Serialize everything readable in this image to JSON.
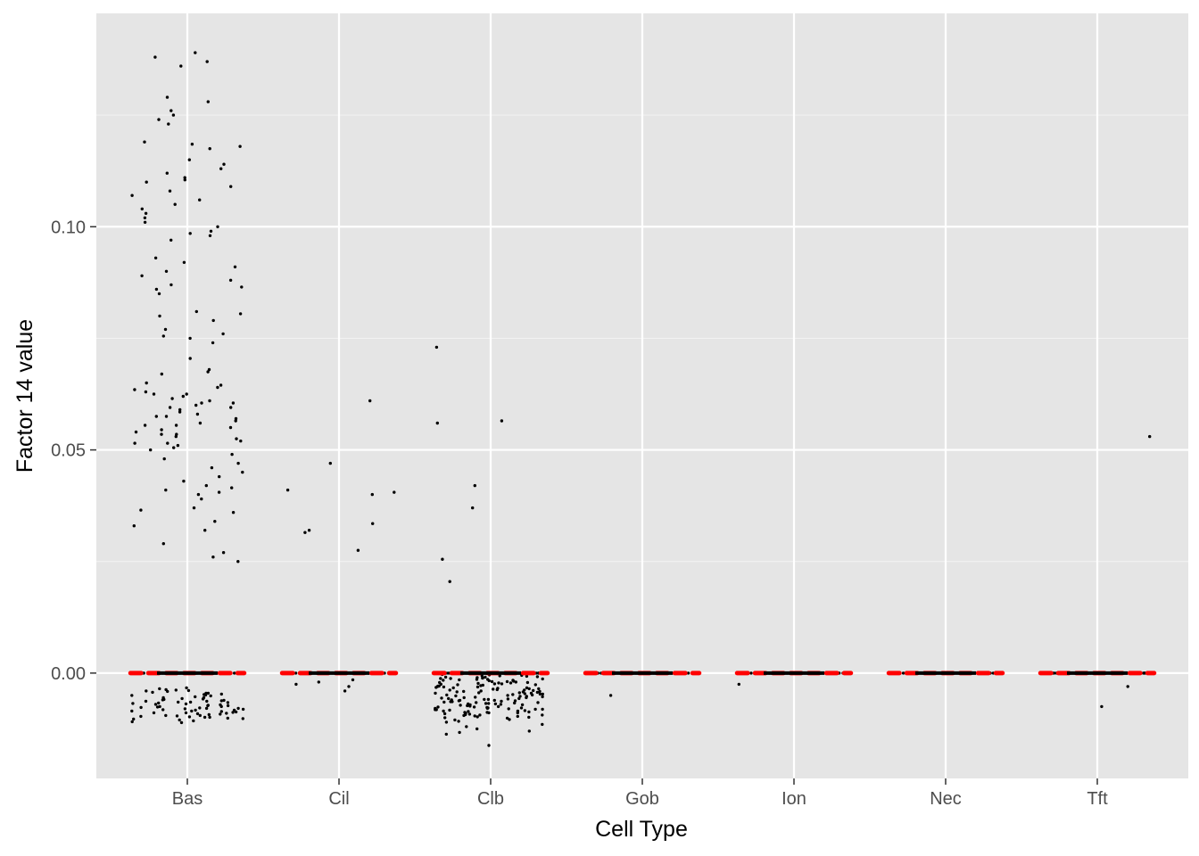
{
  "chart_data": {
    "type": "scatter",
    "title": "",
    "xlabel": "Cell Type",
    "ylabel": "Factor 14 value",
    "categories": [
      "Bas",
      "Cil",
      "Clb",
      "Gob",
      "Ion",
      "Nec",
      "Tft"
    ],
    "ylim": [
      -0.0236,
      0.1478
    ],
    "y_ticks": [
      0.0,
      0.05,
      0.1
    ],
    "y_tick_labels": [
      "0.00",
      "0.05",
      "0.10"
    ],
    "grid": true,
    "jitter_width": 0.37,
    "reference_segments": [
      {
        "category": "Bas",
        "y": 0.0
      },
      {
        "category": "Cil",
        "y": 0.0
      },
      {
        "category": "Clb",
        "y": 0.0
      },
      {
        "category": "Gob",
        "y": 0.0
      },
      {
        "category": "Ion",
        "y": 0.0
      },
      {
        "category": "Nec",
        "y": 0.0
      },
      {
        "category": "Tft",
        "y": 0.0
      }
    ],
    "groups": [
      {
        "category": "Bas",
        "zero_points": 60,
        "negative_values": [
          -0.0035,
          -0.004,
          -0.0045,
          -0.005,
          -0.0055,
          -0.006,
          -0.0065,
          -0.007,
          -0.0075,
          -0.008,
          -0.0085,
          -0.009,
          -0.0095,
          -0.0099,
          -0.0103,
          -0.0107,
          -0.0111,
          -0.0039,
          -0.0049,
          -0.0059,
          -0.0069,
          -0.0079,
          -0.0089,
          -0.0098,
          -0.0088,
          -0.0078,
          -0.0068,
          -0.0058,
          -0.0048,
          -0.0038,
          -0.0062,
          -0.0072,
          -0.0082,
          -0.0092,
          -0.0102,
          -0.0033,
          -0.0043,
          -0.0053,
          -0.0063,
          -0.0073,
          -0.0083,
          -0.0093,
          -0.0097,
          -0.0087,
          -0.0077,
          -0.0067,
          -0.0057,
          -0.0047,
          -0.0037,
          -0.0066,
          -0.0076,
          -0.0086,
          -0.0096,
          -0.0105,
          -0.0109,
          -0.0041,
          -0.0051,
          -0.0061,
          -0.0071,
          -0.0081,
          -0.0091,
          -0.0101,
          -0.0095,
          -0.0085,
          -0.0075,
          -0.0065,
          -0.0055,
          -0.0045,
          -0.0079,
          -0.0089,
          -0.0099,
          -0.0083,
          -0.0073,
          -0.0063
        ],
        "positive_values": [
          0.139,
          0.138,
          0.137,
          0.136,
          0.129,
          0.128,
          0.126,
          0.125,
          0.124,
          0.123,
          0.119,
          0.1185,
          0.118,
          0.1175,
          0.115,
          0.114,
          0.113,
          0.112,
          0.111,
          0.1105,
          0.11,
          0.109,
          0.108,
          0.107,
          0.106,
          0.105,
          0.104,
          0.103,
          0.102,
          0.101,
          0.1,
          0.099,
          0.098,
          0.097,
          0.093,
          0.092,
          0.091,
          0.09,
          0.089,
          0.088,
          0.087,
          0.0865,
          0.086,
          0.085,
          0.081,
          0.0805,
          0.08,
          0.079,
          0.077,
          0.076,
          0.0755,
          0.075,
          0.074,
          0.0705,
          0.068,
          0.0675,
          0.067,
          0.065,
          0.064,
          0.0635,
          0.063,
          0.0625,
          0.062,
          0.0615,
          0.061,
          0.0605,
          0.06,
          0.0595,
          0.059,
          0.0585,
          0.058,
          0.0575,
          0.057,
          0.0565,
          0.056,
          0.0555,
          0.055,
          0.0545,
          0.054,
          0.0535,
          0.053,
          0.0525,
          0.052,
          0.0515,
          0.051,
          0.0505,
          0.05,
          0.049,
          0.048,
          0.047,
          0.046,
          0.045,
          0.044,
          0.043,
          0.042,
          0.0415,
          0.041,
          0.0405,
          0.04,
          0.039,
          0.037,
          0.0365,
          0.036,
          0.034,
          0.033,
          0.032,
          0.029,
          0.027,
          0.026,
          0.025,
          0.0985,
          0.0595,
          0.0625,
          0.0555,
          0.0575,
          0.0605,
          0.0645,
          0.0535,
          0.0515
        ]
      },
      {
        "category": "Cil",
        "zero_points": 30,
        "negative_values": [
          -0.0015,
          -0.002,
          -0.0025,
          -0.003,
          -0.004
        ],
        "positive_values": [
          0.061,
          0.047,
          0.041,
          0.0405,
          0.04,
          0.0335,
          0.032,
          0.0315,
          0.0275
        ]
      },
      {
        "category": "Clb",
        "zero_points": 50,
        "negative_values": [
          -0.0005,
          -0.001,
          -0.0015,
          -0.002,
          -0.0025,
          -0.003,
          -0.0035,
          -0.004,
          -0.0045,
          -0.005,
          -0.0055,
          -0.006,
          -0.0065,
          -0.007,
          -0.0075,
          -0.008,
          -0.0085,
          -0.009,
          -0.0095,
          -0.01,
          -0.0105,
          -0.011,
          -0.012,
          -0.013,
          -0.0137,
          -0.0162,
          -0.0008,
          -0.0012,
          -0.0018,
          -0.0022,
          -0.0028,
          -0.0032,
          -0.0038,
          -0.0042,
          -0.0048,
          -0.0052,
          -0.0058,
          -0.0062,
          -0.0068,
          -0.0072,
          -0.0078,
          -0.0082,
          -0.0088,
          -0.0092,
          -0.0098,
          -0.0006,
          -0.0011,
          -0.0016,
          -0.0021,
          -0.0026,
          -0.0031,
          -0.0036,
          -0.0041,
          -0.0046,
          -0.0051,
          -0.0056,
          -0.0061,
          -0.0066,
          -0.0071,
          -0.0076,
          -0.0081,
          -0.0086,
          -0.0091,
          -0.0096,
          -0.0101,
          -0.0004,
          -0.0009,
          -0.0014,
          -0.0019,
          -0.0024,
          -0.0029,
          -0.0034,
          -0.0039,
          -0.0044,
          -0.0049,
          -0.0054,
          -0.0059,
          -0.0064,
          -0.0069,
          -0.0074,
          -0.0079,
          -0.0084,
          -0.0089,
          -0.0094,
          -0.0007,
          -0.0013,
          -0.0017,
          -0.0023,
          -0.0027,
          -0.0033,
          -0.0037,
          -0.0043,
          -0.0047,
          -0.0053,
          -0.0057,
          -0.0063,
          -0.0067,
          -0.0073,
          -0.0077,
          -0.0083,
          -0.0087,
          -0.0093,
          -0.0003,
          -0.0012,
          -0.0021,
          -0.0033,
          -0.0045,
          -0.0057,
          -0.0069,
          -0.0081,
          -0.0108,
          -0.0115,
          -0.0125,
          -0.0133,
          -0.0011,
          -0.0026,
          -0.0044,
          -0.0062,
          -0.0078,
          -0.0097,
          -0.0104,
          -0.0016,
          -0.0035,
          -0.0052,
          -0.0071,
          -0.0089,
          -0.0009,
          -0.0024,
          -0.0041,
          -0.0059,
          -0.0076,
          -0.0094,
          -0.0019,
          -0.0038,
          -0.0055,
          -0.0068,
          -0.0085,
          -0.0006,
          -0.0029,
          -0.0047,
          -0.0064,
          -0.0082,
          -0.0014,
          -0.0031,
          -0.0049,
          -0.0066,
          -0.0088,
          -0.0022,
          -0.0042,
          -0.0061,
          -0.0079,
          -0.0099
        ],
        "positive_values": [
          0.073,
          0.0565,
          0.056,
          0.042,
          0.037,
          0.0255,
          0.0205
        ]
      },
      {
        "category": "Gob",
        "zero_points": 40,
        "negative_values": [
          -0.005
        ],
        "positive_values": []
      },
      {
        "category": "Ion",
        "zero_points": 35,
        "negative_values": [
          -0.0025
        ],
        "positive_values": []
      },
      {
        "category": "Nec",
        "zero_points": 40,
        "negative_values": [],
        "positive_values": []
      },
      {
        "category": "Tft",
        "zero_points": 40,
        "negative_values": [
          -0.003,
          -0.0075
        ],
        "positive_values": [
          0.053
        ]
      }
    ],
    "colors": {
      "panel": "#e5e5e5",
      "grid_major": "#ffffff",
      "grid_minor": "#f2f2f2",
      "point": "#000000",
      "reference": "#ff0000",
      "tick": "#333333",
      "tick_label": "#4d4d4d",
      "title": "#000000"
    }
  }
}
